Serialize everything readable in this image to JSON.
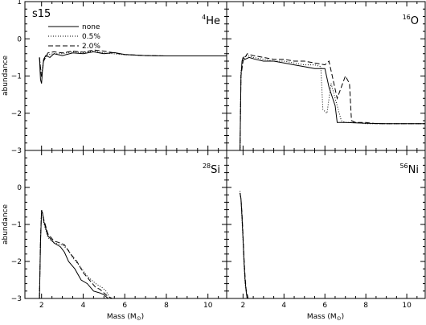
{
  "figure": {
    "run_label": "s15",
    "y_axis_label": "abundance",
    "x_axis_label_text": "Mass (M",
    "x_axis_label_sun_symbol": "⊙",
    "x_axis_label_close": ")"
  },
  "legend": {
    "entries": [
      {
        "label": "none",
        "dash": "solid"
      },
      {
        "label": "0.5%",
        "dash": "dotted"
      },
      {
        "label": "2.0%",
        "dash": "dashed"
      }
    ]
  },
  "chart_data": [
    {
      "type": "line",
      "panel": "top-left",
      "isotope_mass": "4",
      "isotope_symbol": "He",
      "xlim": [
        1.2,
        10.9
      ],
      "ylim": [
        -3,
        1
      ],
      "xticks": [],
      "xticklabels": [],
      "yticks": [
        1,
        0,
        -1,
        -2,
        -3
      ],
      "yticklabels": [
        "1",
        "0",
        "−1",
        "−2",
        "−3"
      ],
      "ylabel": "abundance",
      "xlabel": "",
      "series": [
        {
          "name": "none",
          "dash": "solid",
          "x": [
            1.9,
            1.95,
            2.0,
            2.05,
            2.1,
            2.2,
            2.4,
            2.6,
            3.0,
            3.5,
            4.0,
            4.5,
            5.0,
            5.5,
            6.0,
            7.0,
            8.0,
            9.0,
            10.0,
            10.9
          ],
          "y": [
            -0.5,
            -1.1,
            -1.2,
            -0.8,
            -0.55,
            -0.45,
            -0.5,
            -0.4,
            -0.45,
            -0.38,
            -0.4,
            -0.35,
            -0.4,
            -0.37,
            -0.42,
            -0.45,
            -0.46,
            -0.46,
            -0.46,
            -0.46
          ]
        },
        {
          "name": "0.5%",
          "dash": "dotted",
          "x": [
            1.9,
            2.0,
            2.1,
            2.3,
            2.6,
            3.0,
            3.5,
            4.0,
            4.5,
            5.0,
            6.0,
            7.0,
            8.0,
            9.0,
            10.9
          ],
          "y": [
            -0.5,
            -1.0,
            -0.55,
            -0.42,
            -0.4,
            -0.4,
            -0.35,
            -0.37,
            -0.33,
            -0.38,
            -0.43,
            -0.45,
            -0.46,
            -0.46,
            -0.46
          ]
        },
        {
          "name": "2.0%",
          "dash": "dashed",
          "x": [
            1.9,
            2.0,
            2.1,
            2.3,
            2.6,
            3.0,
            3.5,
            4.0,
            4.5,
            5.0,
            5.5,
            6.0,
            7.0,
            8.0,
            9.0,
            10.9
          ],
          "y": [
            -0.5,
            -1.05,
            -0.6,
            -0.38,
            -0.35,
            -0.38,
            -0.33,
            -0.36,
            -0.3,
            -0.33,
            -0.38,
            -0.42,
            -0.45,
            -0.46,
            -0.46,
            -0.46
          ]
        }
      ]
    },
    {
      "type": "line",
      "panel": "top-right",
      "isotope_mass": "16",
      "isotope_symbol": "O",
      "xlim": [
        1.2,
        10.9
      ],
      "ylim": [
        -3,
        1
      ],
      "xticks": [],
      "xticklabels": [],
      "yticks": [],
      "yticklabels": [],
      "ylabel": "",
      "xlabel": "",
      "series": [
        {
          "name": "none",
          "dash": "solid",
          "x": [
            1.85,
            1.9,
            1.95,
            2.0,
            2.1,
            2.3,
            2.6,
            3.0,
            3.5,
            4.0,
            4.5,
            5.0,
            5.5,
            6.0,
            6.2,
            6.5,
            6.6,
            6.8,
            7.0,
            8.0,
            9.0,
            10.0,
            10.9
          ],
          "y": [
            -3,
            -1.0,
            -0.6,
            -0.5,
            -0.55,
            -0.5,
            -0.55,
            -0.6,
            -0.6,
            -0.65,
            -0.7,
            -0.75,
            -0.8,
            -0.8,
            -1.3,
            -1.8,
            -2.25,
            -2.25,
            -2.25,
            -2.27,
            -2.28,
            -2.28,
            -2.28
          ]
        },
        {
          "name": "0.5%",
          "dash": "dotted",
          "x": [
            1.85,
            1.9,
            2.0,
            2.2,
            2.5,
            3.0,
            3.5,
            4.0,
            4.5,
            5.0,
            5.5,
            5.8,
            5.9,
            6.1,
            6.3,
            6.5,
            6.8,
            7.0,
            7.5,
            8.0,
            9.0,
            10.9
          ],
          "y": [
            -3,
            -0.9,
            -0.5,
            -0.45,
            -0.5,
            -0.55,
            -0.6,
            -0.6,
            -0.65,
            -0.7,
            -0.7,
            -0.75,
            -1.9,
            -2.0,
            -1.2,
            -1.6,
            -2.2,
            -2.25,
            -2.25,
            -2.28,
            -2.28,
            -2.28
          ]
        },
        {
          "name": "2.0%",
          "dash": "dashed",
          "x": [
            1.85,
            1.9,
            2.0,
            2.2,
            2.5,
            3.0,
            3.5,
            4.0,
            4.5,
            5.0,
            5.5,
            6.0,
            6.2,
            6.6,
            7.0,
            7.2,
            7.3,
            7.5,
            8.0,
            8.5,
            9.0,
            10.9
          ],
          "y": [
            -3,
            -1.0,
            -0.6,
            -0.4,
            -0.45,
            -0.5,
            -0.55,
            -0.55,
            -0.6,
            -0.6,
            -0.65,
            -0.7,
            -0.6,
            -1.6,
            -1.0,
            -1.2,
            -2.2,
            -2.25,
            -2.25,
            -2.28,
            -2.28,
            -2.28
          ]
        }
      ]
    },
    {
      "type": "line",
      "panel": "bottom-left",
      "isotope_mass": "28",
      "isotope_symbol": "Si",
      "xlim": [
        1.2,
        10.9
      ],
      "ylim": [
        -3,
        1
      ],
      "xticks": [
        2,
        4,
        6,
        8,
        10
      ],
      "xticklabels": [
        "2",
        "4",
        "6",
        "8",
        "10"
      ],
      "yticks": [
        0,
        -1,
        -2,
        -3
      ],
      "yticklabels": [
        "0",
        "−1",
        "−2",
        "−3"
      ],
      "ylabel": "abundance",
      "xlabel": "Mass (M⊙)",
      "series": [
        {
          "name": "none",
          "dash": "solid",
          "x": [
            1.9,
            1.95,
            2.0,
            2.05,
            2.1,
            2.3,
            2.6,
            2.9,
            3.1,
            3.3,
            3.6,
            3.9,
            4.2,
            4.5,
            4.8,
            5.0,
            5.2
          ],
          "y": [
            -3,
            -1.5,
            -0.65,
            -0.7,
            -0.9,
            -1.3,
            -1.5,
            -1.6,
            -1.75,
            -2.0,
            -2.2,
            -2.5,
            -2.6,
            -2.8,
            -2.85,
            -2.9,
            -3.0
          ]
        },
        {
          "name": "0.5%",
          "dash": "dotted",
          "x": [
            1.9,
            1.95,
            2.0,
            2.05,
            2.1,
            2.3,
            2.6,
            3.0,
            3.3,
            3.5,
            3.8,
            4.2,
            4.6,
            4.9,
            5.1,
            5.3
          ],
          "y": [
            -3,
            -1.4,
            -0.6,
            -0.7,
            -0.95,
            -1.35,
            -1.5,
            -1.55,
            -1.7,
            -1.9,
            -2.1,
            -2.4,
            -2.6,
            -2.7,
            -2.8,
            -3.0
          ]
        },
        {
          "name": "2.0%",
          "dash": "dashed",
          "x": [
            1.9,
            1.95,
            2.0,
            2.05,
            2.1,
            2.3,
            2.6,
            2.9,
            3.1,
            3.4,
            3.7,
            4.0,
            4.3,
            4.6,
            4.8,
            5.0,
            5.2,
            5.4
          ],
          "y": [
            -3,
            -1.4,
            -0.62,
            -0.7,
            -0.85,
            -1.25,
            -1.45,
            -1.5,
            -1.55,
            -1.8,
            -2.0,
            -2.3,
            -2.5,
            -2.7,
            -2.75,
            -2.85,
            -2.95,
            -3.0
          ]
        }
      ]
    },
    {
      "type": "line",
      "panel": "bottom-right",
      "isotope_mass": "56",
      "isotope_symbol": "Ni",
      "xlim": [
        1.2,
        10.9
      ],
      "ylim": [
        -3,
        1
      ],
      "xticks": [
        2,
        4,
        6,
        8,
        10
      ],
      "xticklabels": [
        "2",
        "4",
        "6",
        "8",
        "10"
      ],
      "yticks": [],
      "yticklabels": [],
      "ylabel": "",
      "xlabel": "Mass (M⊙)",
      "series": [
        {
          "name": "none",
          "dash": "solid",
          "x": [
            1.85,
            1.9,
            1.95,
            2.0,
            2.05,
            2.1,
            2.15,
            2.2
          ],
          "y": [
            -0.15,
            -0.3,
            -0.8,
            -1.4,
            -2.0,
            -2.5,
            -2.8,
            -3.0
          ]
        },
        {
          "name": "0.5%",
          "dash": "dotted",
          "x": [
            1.85,
            1.9,
            1.95,
            2.0,
            2.05,
            2.1,
            2.2
          ],
          "y": [
            -0.1,
            -0.35,
            -0.9,
            -1.5,
            -2.1,
            -2.6,
            -3.0
          ]
        },
        {
          "name": "2.0%",
          "dash": "dashed",
          "x": [
            1.85,
            1.9,
            1.95,
            2.0,
            2.05,
            2.1,
            2.15,
            2.25
          ],
          "y": [
            -0.15,
            -0.3,
            -0.7,
            -1.3,
            -1.9,
            -2.4,
            -2.75,
            -3.0
          ]
        }
      ]
    }
  ]
}
